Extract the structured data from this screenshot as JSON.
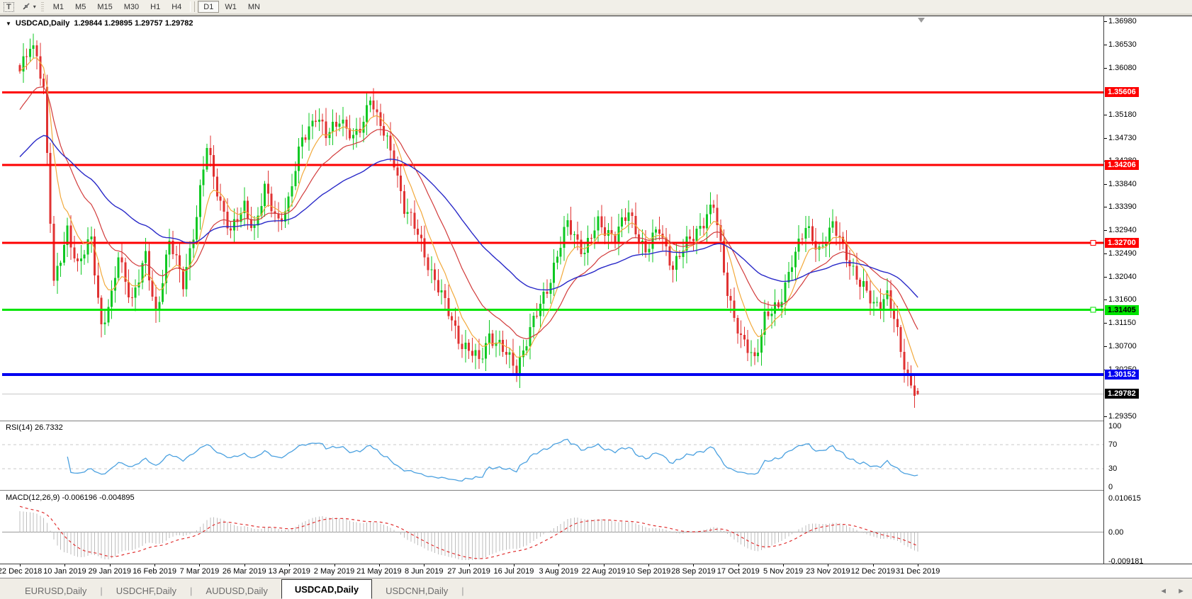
{
  "toolbar": {
    "text_tool_label": "T",
    "arrows_tool_caret": "▾",
    "timeframes": [
      "M1",
      "M5",
      "M15",
      "M30",
      "H1",
      "H4",
      "D1",
      "W1",
      "MN"
    ],
    "active_timeframe": "D1"
  },
  "chart": {
    "title": "USDCAD,Daily",
    "ohlc_text": "1.29844 1.29895 1.29757 1.29782",
    "open": "1.29844",
    "high": "1.29895",
    "low": "1.29757",
    "close": "1.29782",
    "dropdown_triangle": "▼"
  },
  "price_axis": {
    "ticks": [
      "1.36980",
      "1.36530",
      "1.36080",
      "1.35180",
      "1.34730",
      "1.34280",
      "1.33840",
      "1.33390",
      "1.32940",
      "1.32490",
      "1.32040",
      "1.31600",
      "1.31150",
      "1.30700",
      "1.30250",
      "1.29350"
    ],
    "levels": [
      {
        "value": "1.35606",
        "price": 1.35606,
        "line_color": "#fe0000",
        "label_bg": "#fe0000",
        "label_text": "#ffffff",
        "thickness": 3,
        "handle": false
      },
      {
        "value": "1.34206",
        "price": 1.34206,
        "line_color": "#fe0000",
        "label_bg": "#fe0000",
        "label_text": "#ffffff",
        "thickness": 3,
        "handle": false
      },
      {
        "value": "1.32700",
        "price": 1.327,
        "line_color": "#fe0000",
        "label_bg": "#fe0000",
        "label_text": "#ffffff",
        "thickness": 3,
        "handle": true
      },
      {
        "value": "1.31405",
        "price": 1.31405,
        "line_color": "#00e400",
        "label_bg": "#00e400",
        "label_text": "#000000",
        "thickness": 3,
        "handle": true
      },
      {
        "value": "1.30152",
        "price": 1.30152,
        "line_color": "#0000f0",
        "label_bg": "#0000f0",
        "label_text": "#ffffff",
        "thickness": 4,
        "handle": false
      }
    ],
    "current_price": {
      "value": "1.29782",
      "price": 1.29782,
      "label_bg": "#000000",
      "label_text": "#ffffff",
      "line_color": "#c8c8c8"
    }
  },
  "indicators": {
    "rsi": {
      "label": "RSI(14) 26.7332",
      "period": 14,
      "value": 26.7332,
      "ticks": [
        "100",
        "70",
        "30",
        "0"
      ],
      "tick_values": [
        100,
        70,
        30,
        0
      ],
      "level_lines": [
        70,
        30
      ],
      "line_color": "#4ba1e0"
    },
    "macd": {
      "label": "MACD(12,26,9) -0.006196 -0.004895",
      "fast": 12,
      "slow": 26,
      "signal": 9,
      "main_value": -0.006196,
      "signal_value": -0.004895,
      "ticks": [
        "0.010615",
        "0.00",
        "-0.009181"
      ],
      "tick_values": [
        0.010615,
        0.0,
        -0.009181
      ],
      "histogram_color": "#bdbdbd",
      "signal_color": "#e03030"
    }
  },
  "time_axis": {
    "labels": [
      "22 Dec 2018",
      "10 Jan 2019",
      "29 Jan 2019",
      "16 Feb 2019",
      "7 Mar 2019",
      "26 Mar 2019",
      "13 Apr 2019",
      "2 May 2019",
      "21 May 2019",
      "8 Jun 2019",
      "27 Jun 2019",
      "16 Jul 2019",
      "3 Aug 2019",
      "22 Aug 2019",
      "10 Sep 2019",
      "28 Sep 2019",
      "17 Oct 2019",
      "5 Nov 2019",
      "23 Nov 2019",
      "12 Dec 2019",
      "31 Dec 2019"
    ]
  },
  "tabs": {
    "items": [
      "EURUSD,Daily",
      "USDCHF,Daily",
      "AUDUSD,Daily",
      "USDCAD,Daily",
      "USDCNH,Daily"
    ],
    "active": "USDCAD,Daily",
    "scroll_left": "◄",
    "scroll_right": "►"
  },
  "chart_data": {
    "type": "candlestick",
    "symbol": "USDCAD",
    "timeframe": "Daily",
    "bars": 265,
    "x_start_date": "22 Dec 2018",
    "x_end_date": "31 Dec 2019",
    "price_range": [
      1.2928,
      1.37076
    ],
    "last_bar": {
      "open": 1.29844,
      "high": 1.29895,
      "low": 1.29757,
      "close": 1.29782
    },
    "horizontal_levels": [
      1.35606,
      1.34206,
      1.327,
      1.31405,
      1.30152
    ],
    "current_price_line": 1.29782,
    "moving_averages": [
      {
        "name": "fast",
        "period": 8,
        "color": "#f2a93b"
      },
      {
        "name": "medium",
        "period": 21,
        "color": "#d23b3b"
      },
      {
        "name": "slow",
        "period": 55,
        "color": "#2929c8"
      }
    ],
    "candle_up_color": "#0ec822",
    "candle_down_color": "#e03232",
    "close_waypoints": [
      [
        0,
        1.3595
      ],
      [
        3,
        1.365
      ],
      [
        5,
        1.364
      ],
      [
        7,
        1.3565
      ],
      [
        10,
        1.3185
      ],
      [
        14,
        1.33
      ],
      [
        17,
        1.322
      ],
      [
        21,
        1.328
      ],
      [
        24,
        1.311
      ],
      [
        27,
        1.316
      ],
      [
        29,
        1.3245
      ],
      [
        33,
        1.316
      ],
      [
        37,
        1.324
      ],
      [
        40,
        1.3135
      ],
      [
        44,
        1.327
      ],
      [
        48,
        1.3195
      ],
      [
        52,
        1.332
      ],
      [
        55,
        1.3455
      ],
      [
        59,
        1.335
      ],
      [
        62,
        1.3285
      ],
      [
        66,
        1.3345
      ],
      [
        69,
        1.3295
      ],
      [
        72,
        1.337
      ],
      [
        76,
        1.3315
      ],
      [
        79,
        1.3345
      ],
      [
        83,
        1.3475
      ],
      [
        87,
        1.3515
      ],
      [
        90,
        1.3475
      ],
      [
        94,
        1.3515
      ],
      [
        98,
        1.3465
      ],
      [
        101,
        1.3505
      ],
      [
        103,
        1.356
      ],
      [
        105,
        1.351
      ],
      [
        110,
        1.343
      ],
      [
        113,
        1.334
      ],
      [
        117,
        1.3285
      ],
      [
        121,
        1.3215
      ],
      [
        125,
        1.315
      ],
      [
        130,
        1.3075
      ],
      [
        135,
        1.304
      ],
      [
        138,
        1.3095
      ],
      [
        142,
        1.306
      ],
      [
        146,
        1.303
      ],
      [
        151,
        1.3115
      ],
      [
        155,
        1.3185
      ],
      [
        158,
        1.3245
      ],
      [
        161,
        1.3305
      ],
      [
        166,
        1.3255
      ],
      [
        170,
        1.3305
      ],
      [
        175,
        1.3285
      ],
      [
        179,
        1.3325
      ],
      [
        184,
        1.3255
      ],
      [
        188,
        1.3295
      ],
      [
        192,
        1.3225
      ],
      [
        196,
        1.3265
      ],
      [
        200,
        1.3305
      ],
      [
        204,
        1.334
      ],
      [
        208,
        1.318
      ],
      [
        212,
        1.308
      ],
      [
        216,
        1.3045
      ],
      [
        219,
        1.313
      ],
      [
        223,
        1.314
      ],
      [
        227,
        1.324
      ],
      [
        231,
        1.3295
      ],
      [
        235,
        1.326
      ],
      [
        239,
        1.33
      ],
      [
        243,
        1.325
      ],
      [
        247,
        1.319
      ],
      [
        251,
        1.315
      ],
      [
        255,
        1.317
      ],
      [
        257,
        1.312
      ],
      [
        259,
        1.306
      ],
      [
        261,
        1.301
      ],
      [
        263,
        1.299
      ],
      [
        264,
        1.29782
      ]
    ]
  }
}
